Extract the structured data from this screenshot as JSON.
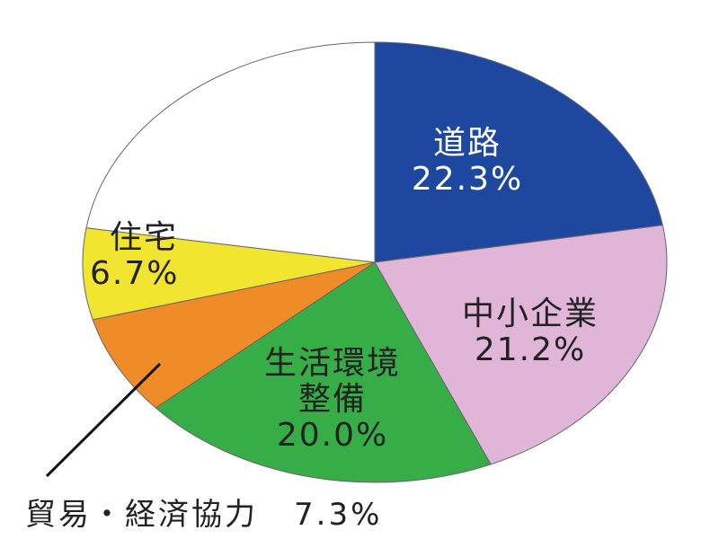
{
  "chart_data": {
    "type": "pie",
    "start": "top",
    "direction": "clockwise",
    "slices": [
      {
        "label": "道路",
        "value": 22.3,
        "value_label": "22.3%",
        "color": "#1e48a0"
      },
      {
        "label": "中小企業",
        "value": 21.2,
        "value_label": "21.2%",
        "color": "#e0b5d8"
      },
      {
        "label": "生活環境整備",
        "label_lines": [
          "生活環境",
          "整備"
        ],
        "value": 20.0,
        "value_label": "20.0%",
        "color": "#37ad48"
      },
      {
        "label": "貿易・経済協力",
        "value": 7.3,
        "value_label": "7.3%",
        "color": "#f08c28"
      },
      {
        "label": "住宅",
        "value": 6.7,
        "value_label": "6.7%",
        "color": "#f2e530"
      },
      {
        "label": "",
        "value": 22.5,
        "color": "#ffffff"
      }
    ],
    "legend": "none"
  }
}
